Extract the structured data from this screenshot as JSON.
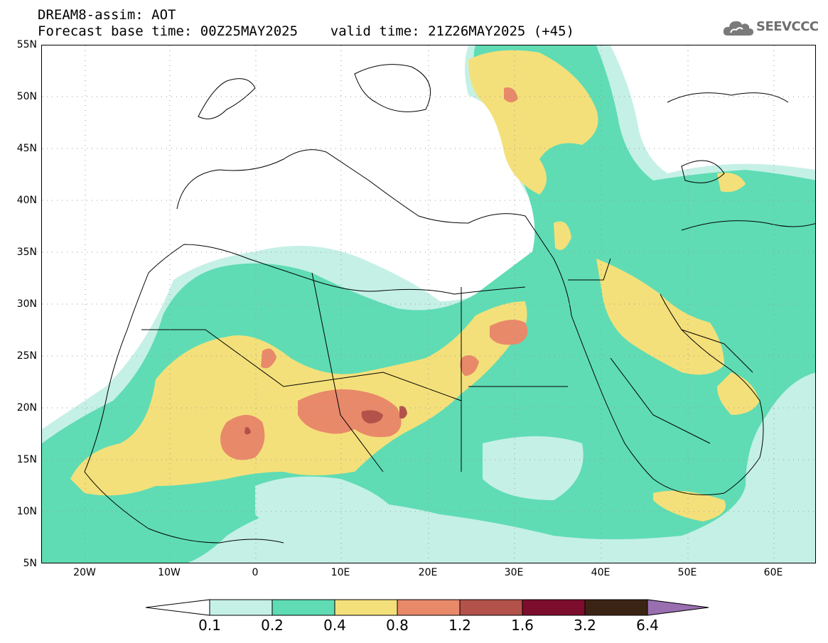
{
  "title": {
    "line1": "DREAM8-assim: AOT",
    "line2": "Forecast base time: 00Z25MAY2025    valid time: 21Z26MAY2025 (+45)"
  },
  "logo": {
    "text": "SEEVCCC",
    "icon": "cloud-icon"
  },
  "map": {
    "lon_range": [
      -25,
      65
    ],
    "lat_range": [
      5,
      55
    ],
    "lat_labels": [
      "55N",
      "50N",
      "45N",
      "40N",
      "35N",
      "30N",
      "25N",
      "20N",
      "15N",
      "10N",
      "5N"
    ],
    "lon_labels": [
      "20W",
      "10W",
      "0",
      "10E",
      "20E",
      "30E",
      "40E",
      "50E",
      "60E"
    ],
    "gridlines": "dotted"
  },
  "colorbar": {
    "labels": [
      "0.1",
      "0.2",
      "0.4",
      "0.8",
      "1.2",
      "1.6",
      "3.2",
      "6.4"
    ],
    "colors": [
      "#c5f0e6",
      "#5fdcb4",
      "#f4e07a",
      "#e8896a",
      "#b2524a",
      "#7d0d2c",
      "#3b2414"
    ],
    "under_color": "#ffffff",
    "over_color": "#9a6fb0"
  }
}
